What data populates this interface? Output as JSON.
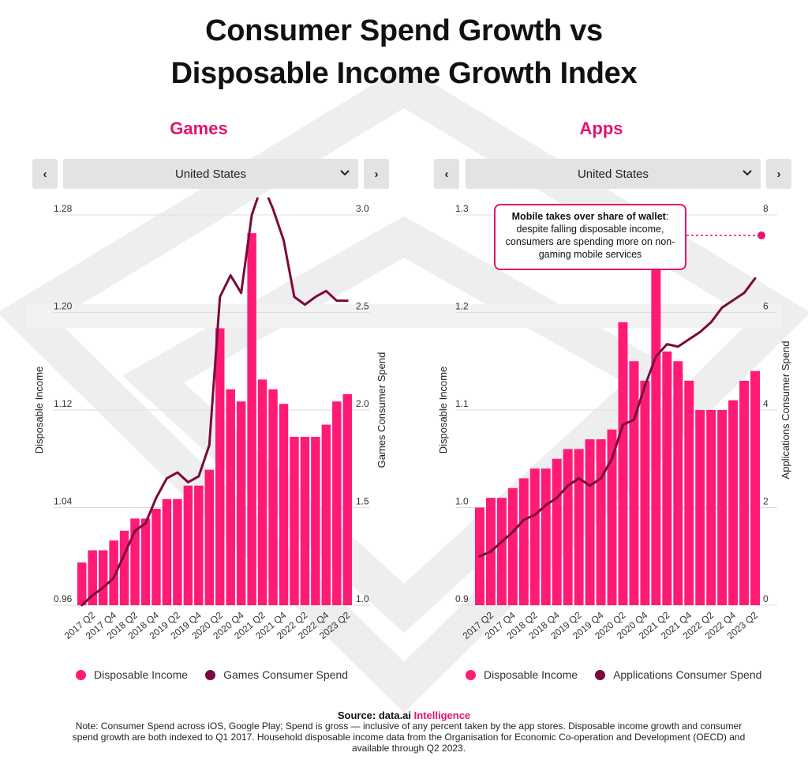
{
  "title_line1": "Consumer Spend Growth vs",
  "title_line2": "Disposable Income Growth Index",
  "colors": {
    "bar": "#ff1a75",
    "line": "#7a0a3d",
    "accent": "#e5136f"
  },
  "panels": [
    {
      "title": "Games",
      "prev_icon": "‹",
      "next_icon": "›",
      "country": "United States",
      "dropdown_icon": "chevron-down-icon",
      "legend": [
        "Disposable Income",
        "Games Consumer Spend"
      ]
    },
    {
      "title": "Apps",
      "prev_icon": "‹",
      "next_icon": "›",
      "country": "United States",
      "dropdown_icon": "chevron-down-icon",
      "legend": [
        "Disposable Income",
        "Applications Consumer Spend"
      ]
    }
  ],
  "callout": {
    "bold": "Mobile takes over share of wallet",
    "text": "despite falling disposable income, consumers are spending more on non-gaming mobile services"
  },
  "footer": {
    "source_prefix": "Source: data.ai ",
    "source_brand": "Intelligence",
    "note": "Note: Consumer Spend across iOS, Google Play; Spend is gross — inclusive of any percent taken by the app stores. Disposable income growth and consumer spend growth are both indexed to Q1 2017. Household disposable income data from the Organisation for Economic Co-operation and Development (OECD) and available through Q2 2023."
  },
  "chart_data": [
    {
      "type": "bar",
      "title": "Games",
      "categories": [
        "2017 Q1",
        "2017 Q2",
        "2017 Q3",
        "2017 Q4",
        "2018 Q1",
        "2018 Q2",
        "2018 Q3",
        "2018 Q4",
        "2019 Q1",
        "2019 Q2",
        "2019 Q3",
        "2019 Q4",
        "2020 Q1",
        "2020 Q2",
        "2020 Q3",
        "2020 Q4",
        "2021 Q1",
        "2021 Q2",
        "2021 Q3",
        "2021 Q4",
        "2022 Q1",
        "2022 Q2",
        "2022 Q3",
        "2022 Q4",
        "2023 Q1",
        "2023 Q2"
      ],
      "tick_labels": [
        "2017 Q2",
        "2017 Q4",
        "2018 Q2",
        "2018 Q4",
        "2019 Q2",
        "2019 Q4",
        "2020 Q2",
        "2020 Q4",
        "2021 Q2",
        "2021 Q4",
        "2022 Q2",
        "2022 Q4",
        "2023 Q2"
      ],
      "series": [
        {
          "name": "Disposable Income",
          "type": "bar",
          "axis": "left",
          "values": [
            0.995,
            1.005,
            1.005,
            1.013,
            1.021,
            1.031,
            1.031,
            1.039,
            1.047,
            1.047,
            1.058,
            1.058,
            1.071,
            1.187,
            1.137,
            1.127,
            1.265,
            1.145,
            1.137,
            1.125,
            1.098,
            1.098,
            1.098,
            1.108,
            1.127,
            1.133
          ]
        },
        {
          "name": "Games Consumer Spend",
          "type": "line",
          "axis": "right",
          "values": [
            1.0,
            1.05,
            1.09,
            1.14,
            1.26,
            1.38,
            1.42,
            1.55,
            1.65,
            1.68,
            1.63,
            1.66,
            1.82,
            2.58,
            2.69,
            2.6,
            3.0,
            3.16,
            3.03,
            2.87,
            2.58,
            2.54,
            2.58,
            2.61,
            2.56,
            2.56
          ]
        }
      ],
      "left_axis": {
        "label": "Disposable Income",
        "ticks": [
          "1.28",
          "1.20",
          "1.12",
          "1.04",
          "0.96"
        ],
        "range": [
          0.96,
          1.28
        ]
      },
      "right_axis": {
        "label": "Games Consumer Spend",
        "ticks": [
          "3.0",
          "2.5",
          "2.0",
          "1.5",
          "1.0"
        ],
        "range": [
          1.0,
          3.0
        ]
      },
      "grid": true
    },
    {
      "type": "bar",
      "title": "Apps",
      "categories": [
        "2017 Q1",
        "2017 Q2",
        "2017 Q3",
        "2017 Q4",
        "2018 Q1",
        "2018 Q2",
        "2018 Q3",
        "2018 Q4",
        "2019 Q1",
        "2019 Q2",
        "2019 Q3",
        "2019 Q4",
        "2020 Q1",
        "2020 Q2",
        "2020 Q3",
        "2020 Q4",
        "2021 Q1",
        "2021 Q2",
        "2021 Q3",
        "2021 Q4",
        "2022 Q1",
        "2022 Q2",
        "2022 Q3",
        "2022 Q4",
        "2023 Q1",
        "2023 Q2"
      ],
      "tick_labels": [
        "2017 Q2",
        "2017 Q4",
        "2018 Q2",
        "2018 Q4",
        "2019 Q2",
        "2019 Q4",
        "2020 Q2",
        "2020 Q4",
        "2021 Q2",
        "2021 Q4",
        "2022 Q2",
        "2022 Q4",
        "2023 Q2"
      ],
      "series": [
        {
          "name": "Disposable Income",
          "type": "bar",
          "axis": "left",
          "values": [
            1.0,
            1.01,
            1.01,
            1.02,
            1.03,
            1.04,
            1.04,
            1.05,
            1.06,
            1.06,
            1.07,
            1.07,
            1.08,
            1.19,
            1.15,
            1.13,
            1.27,
            1.16,
            1.15,
            1.13,
            1.1,
            1.1,
            1.1,
            1.11,
            1.13,
            1.14
          ]
        },
        {
          "name": "Applications Consumer Spend",
          "type": "line",
          "axis": "right",
          "values": [
            1.0,
            1.1,
            1.3,
            1.5,
            1.75,
            1.85,
            2.05,
            2.2,
            2.45,
            2.6,
            2.45,
            2.6,
            3.0,
            3.7,
            3.8,
            4.5,
            5.1,
            5.35,
            5.3,
            5.45,
            5.6,
            5.8,
            6.1,
            6.25,
            6.4,
            6.7
          ]
        }
      ],
      "left_axis": {
        "label": "Disposable Income",
        "ticks": [
          "1.3",
          "1.2",
          "1.1",
          "1.0",
          "0.9"
        ],
        "range": [
          0.9,
          1.3
        ]
      },
      "right_axis": {
        "label": "Applications Consumer Spend",
        "ticks": [
          "8",
          "6",
          "4",
          "2",
          "0"
        ],
        "range": [
          0,
          8
        ]
      },
      "grid": true
    }
  ]
}
